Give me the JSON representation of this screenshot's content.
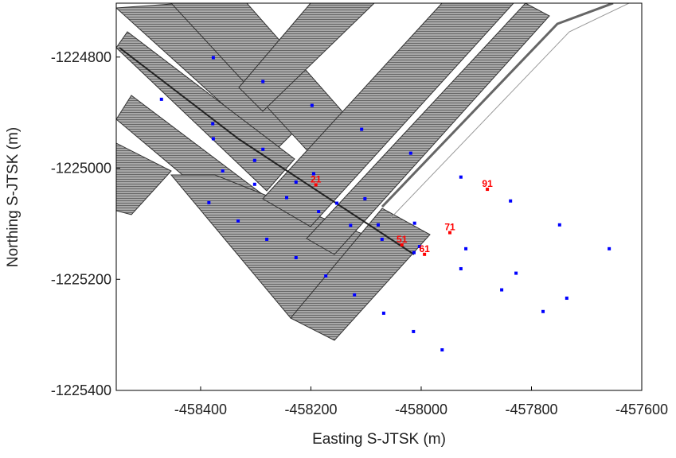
{
  "chart_data": {
    "type": "scatter",
    "xlabel": "Easting S-JTSK (m)",
    "ylabel": "Northing S-JTSK (m)",
    "xlim": [
      -458553,
      -457600
    ],
    "ylim": [
      -1225400,
      -1224703
    ],
    "xticks": [
      -458400,
      -458200,
      -458000,
      -457800,
      -457600
    ],
    "yticks": [
      -1224800,
      -1225000,
      -1225200,
      -1225400
    ],
    "series": [
      {
        "color": "#0000ff",
        "x": [
          -458377,
          -458287,
          -458198,
          -458108,
          -458019,
          -457928,
          -457838,
          -457749,
          -457659,
          -458471,
          -458378,
          -458287,
          -458195,
          -458102,
          -458012,
          -457919,
          -457828,
          -457736,
          -458377,
          -458302,
          -458227,
          -458153,
          -458078,
          -458003,
          -457928,
          -457854,
          -457779,
          -458360,
          -458302,
          -458244,
          -458186,
          -458128,
          -458071,
          -458013,
          -458385,
          -458332,
          -458280,
          -458227,
          -458173,
          -458121,
          -458068,
          -458014,
          -457962
        ],
        "y": [
          -1224801,
          -1224844,
          -1224887,
          -1224930,
          -1224973,
          -1225016,
          -1225059,
          -1225102,
          -1225145,
          -1224876,
          -1224920,
          -1224966,
          -1225010,
          -1225055,
          -1225099,
          -1225145,
          -1225189,
          -1225234,
          -1224947,
          -1224986,
          -1225025,
          -1225063,
          -1225102,
          -1225141,
          -1225181,
          -1225219,
          -1225258,
          -1225005,
          -1225029,
          -1225053,
          -1225078,
          -1225103,
          -1225128,
          -1225152,
          -1225062,
          -1225095,
          -1225128,
          -1225161,
          -1225194,
          -1225228,
          -1225261,
          -1225294,
          -1225327
        ]
      }
    ],
    "labeled_points": {
      "color": "#ff0000",
      "labels": [
        "21",
        "51",
        "61",
        "71",
        "91"
      ],
      "x": [
        -458191,
        -458035,
        -457994,
        -457948,
        -457880
      ],
      "y": [
        -1225030,
        -1225138,
        -1225155,
        -1225116,
        -1225038
      ]
    }
  }
}
